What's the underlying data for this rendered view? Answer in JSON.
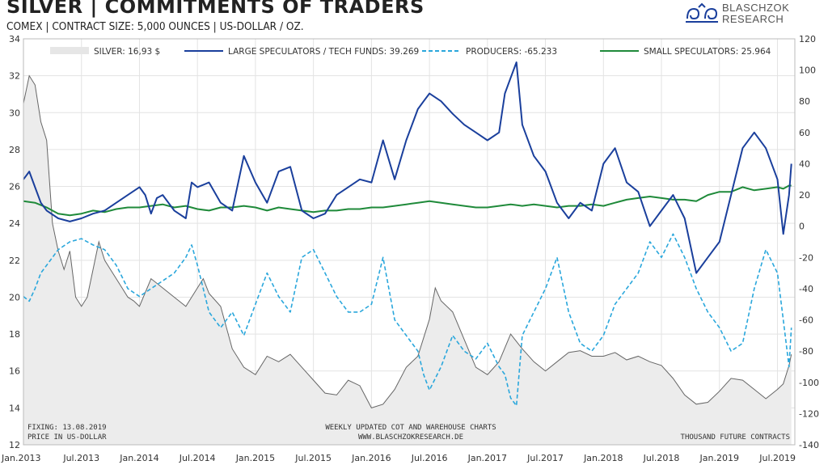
{
  "header": {
    "title": "SILVER | COMMITMENTS OF TRADERS",
    "subtitle": "COMEX | CONTRACT SIZE: 5,000 OUNCES | US-DOLLAR / OZ."
  },
  "logo": {
    "line1": "BLASCHZOK",
    "line2": "RESEARCH"
  },
  "chart_data": {
    "type": "line",
    "title": "SILVER | COMMITMENTS OF TRADERS",
    "left_axis": {
      "label": "PRICE IN US-DOLLAR",
      "min": 12,
      "max": 34,
      "ticks": [
        12,
        14,
        16,
        18,
        20,
        22,
        24,
        26,
        28,
        30,
        32,
        34
      ]
    },
    "right_axis": {
      "label": "THOUSAND FUTURE CONTRACTS",
      "min": -140,
      "max": 120,
      "ticks": [
        -140,
        -120,
        -100,
        -80,
        -60,
        -40,
        -20,
        0,
        20,
        40,
        60,
        80,
        100,
        120
      ]
    },
    "x_ticks": [
      "Jan.2013",
      "Jul.2013",
      "Jan.2014",
      "Jul.2014",
      "Jan.2015",
      "Jul.2015",
      "Jan.2016",
      "Jul.2016",
      "Jan.2017",
      "Jul.2017",
      "Jan.2018",
      "Jul.2018",
      "Jan.2019",
      "Jul.2019"
    ],
    "x_range": [
      2013.0,
      2019.65
    ],
    "legend": [
      {
        "name": "SILVER: 16,93 $",
        "color": "#e6e6e6",
        "style": "area"
      },
      {
        "name": "LARGE SPECULATORS / TECH FUNDS: 39.269",
        "color": "#1a3f9c",
        "style": "solid"
      },
      {
        "name": "PRODUCERS: -65.233",
        "color": "#2aa7dc",
        "style": "dashed"
      },
      {
        "name": "SMALL SPECULATORS: 25.964",
        "color": "#1f8a3a",
        "style": "solid"
      }
    ],
    "series": [
      {
        "name": "Silver price",
        "axis": "left",
        "x": [
          2013.0,
          2013.05,
          2013.1,
          2013.15,
          2013.2,
          2013.25,
          2013.3,
          2013.35,
          2013.4,
          2013.45,
          2013.5,
          2013.55,
          2013.6,
          2013.65,
          2013.7,
          2013.75,
          2013.8,
          2013.85,
          2013.9,
          2013.95,
          2014.0,
          2014.1,
          2014.2,
          2014.3,
          2014.4,
          2014.5,
          2014.55,
          2014.6,
          2014.7,
          2014.8,
          2014.9,
          2015.0,
          2015.1,
          2015.2,
          2015.3,
          2015.4,
          2015.5,
          2015.6,
          2015.7,
          2015.8,
          2015.9,
          2016.0,
          2016.1,
          2016.2,
          2016.3,
          2016.4,
          2016.5,
          2016.55,
          2016.6,
          2016.7,
          2016.8,
          2016.9,
          2017.0,
          2017.1,
          2017.2,
          2017.3,
          2017.4,
          2017.5,
          2017.6,
          2017.7,
          2017.8,
          2017.9,
          2018.0,
          2018.1,
          2018.2,
          2018.3,
          2018.4,
          2018.5,
          2018.6,
          2018.7,
          2018.8,
          2018.9,
          2019.0,
          2019.1,
          2019.2,
          2019.3,
          2019.4,
          2019.5,
          2019.55,
          2019.6,
          2019.62
        ],
        "values": [
          30.5,
          32.0,
          31.5,
          29.5,
          28.5,
          24.0,
          22.5,
          21.5,
          22.5,
          20.0,
          19.5,
          20.0,
          21.5,
          23.0,
          22.0,
          21.5,
          21.0,
          20.5,
          20.0,
          19.8,
          19.5,
          21.0,
          20.5,
          20.0,
          19.5,
          20.5,
          21.0,
          20.2,
          19.5,
          17.2,
          16.2,
          15.8,
          16.8,
          16.5,
          16.9,
          16.2,
          15.5,
          14.8,
          14.7,
          15.5,
          15.2,
          14.0,
          14.2,
          15.0,
          16.2,
          16.8,
          18.8,
          20.5,
          19.8,
          19.2,
          17.7,
          16.2,
          15.8,
          16.5,
          18.0,
          17.2,
          16.5,
          16.0,
          16.5,
          17.0,
          17.1,
          16.8,
          16.8,
          17.0,
          16.6,
          16.8,
          16.5,
          16.3,
          15.6,
          14.7,
          14.2,
          14.3,
          14.9,
          15.6,
          15.5,
          15.0,
          14.5,
          15.0,
          15.3,
          16.3,
          16.9
        ]
      },
      {
        "name": "Large Speculators / Tech Funds",
        "axis": "right",
        "x": [
          2013.0,
          2013.05,
          2013.1,
          2013.15,
          2013.2,
          2013.3,
          2013.4,
          2013.5,
          2013.6,
          2013.7,
          2013.8,
          2013.9,
          2014.0,
          2014.05,
          2014.1,
          2014.15,
          2014.2,
          2014.3,
          2014.4,
          2014.45,
          2014.5,
          2014.6,
          2014.7,
          2014.8,
          2014.9,
          2015.0,
          2015.1,
          2015.2,
          2015.3,
          2015.4,
          2015.5,
          2015.6,
          2015.7,
          2015.8,
          2015.9,
          2016.0,
          2016.1,
          2016.2,
          2016.3,
          2016.4,
          2016.45,
          2016.5,
          2016.6,
          2016.7,
          2016.8,
          2016.9,
          2017.0,
          2017.1,
          2017.15,
          2017.2,
          2017.25,
          2017.3,
          2017.4,
          2017.5,
          2017.6,
          2017.7,
          2017.8,
          2017.9,
          2018.0,
          2018.1,
          2018.2,
          2018.3,
          2018.4,
          2018.5,
          2018.6,
          2018.7,
          2018.8,
          2018.9,
          2019.0,
          2019.1,
          2019.2,
          2019.3,
          2019.4,
          2019.5,
          2019.55,
          2019.6,
          2019.62
        ],
        "values": [
          30,
          35,
          25,
          15,
          10,
          5,
          3,
          5,
          8,
          10,
          15,
          20,
          25,
          20,
          8,
          18,
          20,
          10,
          5,
          28,
          25,
          28,
          15,
          10,
          45,
          28,
          15,
          35,
          38,
          10,
          5,
          8,
          20,
          25,
          30,
          28,
          55,
          30,
          55,
          75,
          80,
          85,
          80,
          72,
          65,
          60,
          55,
          60,
          85,
          95,
          105,
          65,
          45,
          35,
          15,
          5,
          15,
          10,
          40,
          50,
          28,
          22,
          0,
          10,
          20,
          5,
          -30,
          -20,
          -10,
          20,
          50,
          60,
          50,
          30,
          -5,
          20,
          40
        ]
      },
      {
        "name": "Producers",
        "axis": "right",
        "x": [
          2013.0,
          2013.05,
          2013.1,
          2013.15,
          2013.2,
          2013.3,
          2013.4,
          2013.5,
          2013.6,
          2013.7,
          2013.8,
          2013.9,
          2014.0,
          2014.1,
          2014.2,
          2014.3,
          2014.4,
          2014.45,
          2014.5,
          2014.6,
          2014.7,
          2014.8,
          2014.9,
          2015.0,
          2015.1,
          2015.2,
          2015.3,
          2015.4,
          2015.5,
          2015.6,
          2015.7,
          2015.8,
          2015.9,
          2016.0,
          2016.1,
          2016.2,
          2016.3,
          2016.4,
          2016.45,
          2016.5,
          2016.6,
          2016.7,
          2016.8,
          2016.9,
          2017.0,
          2017.1,
          2017.15,
          2017.2,
          2017.25,
          2017.3,
          2017.4,
          2017.5,
          2017.6,
          2017.7,
          2017.8,
          2017.9,
          2018.0,
          2018.1,
          2018.2,
          2018.3,
          2018.4,
          2018.5,
          2018.6,
          2018.7,
          2018.8,
          2018.9,
          2019.0,
          2019.1,
          2019.2,
          2019.3,
          2019.4,
          2019.5,
          2019.55,
          2019.6,
          2019.62
        ],
        "values": [
          -45,
          -48,
          -40,
          -30,
          -25,
          -15,
          -10,
          -8,
          -12,
          -15,
          -25,
          -40,
          -45,
          -40,
          -35,
          -30,
          -20,
          -12,
          -25,
          -55,
          -65,
          -55,
          -70,
          -50,
          -30,
          -45,
          -55,
          -20,
          -15,
          -30,
          -45,
          -55,
          -55,
          -50,
          -20,
          -60,
          -70,
          -80,
          -95,
          -105,
          -90,
          -70,
          -80,
          -85,
          -75,
          -90,
          -95,
          -110,
          -115,
          -70,
          -55,
          -40,
          -20,
          -55,
          -75,
          -80,
          -70,
          -50,
          -40,
          -30,
          -10,
          -20,
          -5,
          -20,
          -40,
          -55,
          -65,
          -80,
          -75,
          -40,
          -15,
          -30,
          -60,
          -90,
          -65
        ]
      },
      {
        "name": "Small Speculators",
        "axis": "right",
        "x": [
          2013.0,
          2013.1,
          2013.2,
          2013.3,
          2013.4,
          2013.5,
          2013.6,
          2013.7,
          2013.8,
          2013.9,
          2014.0,
          2014.1,
          2014.2,
          2014.3,
          2014.4,
          2014.5,
          2014.6,
          2014.7,
          2014.8,
          2014.9,
          2015.0,
          2015.1,
          2015.2,
          2015.3,
          2015.4,
          2015.5,
          2015.6,
          2015.7,
          2015.8,
          2015.9,
          2016.0,
          2016.1,
          2016.2,
          2016.3,
          2016.4,
          2016.5,
          2016.6,
          2016.7,
          2016.8,
          2016.9,
          2017.0,
          2017.1,
          2017.2,
          2017.3,
          2017.4,
          2017.5,
          2017.6,
          2017.7,
          2017.8,
          2017.9,
          2018.0,
          2018.1,
          2018.2,
          2018.3,
          2018.4,
          2018.5,
          2018.6,
          2018.7,
          2018.8,
          2018.9,
          2019.0,
          2019.1,
          2019.2,
          2019.3,
          2019.4,
          2019.5,
          2019.55,
          2019.6,
          2019.62
        ],
        "values": [
          16,
          15,
          12,
          8,
          7,
          8,
          10,
          9,
          11,
          12,
          12,
          13,
          14,
          12,
          13,
          11,
          10,
          12,
          12,
          13,
          12,
          10,
          12,
          11,
          10,
          9,
          10,
          10,
          11,
          11,
          12,
          12,
          13,
          14,
          15,
          16,
          15,
          14,
          13,
          12,
          12,
          13,
          14,
          13,
          14,
          13,
          12,
          13,
          13,
          14,
          13,
          15,
          17,
          18,
          19,
          18,
          17,
          17,
          16,
          20,
          22,
          22,
          25,
          23,
          24,
          25,
          24,
          26,
          26
        ]
      }
    ],
    "footnotes": {
      "left_1": "FIXING: 13.08.2019",
      "left_2": "PRICE IN US-DOLLAR",
      "center_1": "WEEKLY UPDATED COT AND WAREHOUSE CHARTS",
      "center_2": "WWW.BLASCHZOKRESEARCH.DE",
      "right_1": "THOUSAND FUTURE CONTRACTS"
    },
    "colors": {
      "silver_fill": "#ececec",
      "silver_line": "#666666",
      "large_spec": "#1a3f9c",
      "producers": "#2aa7dc",
      "small_spec": "#1f8a3a",
      "grid": "#e3e3e3"
    }
  }
}
